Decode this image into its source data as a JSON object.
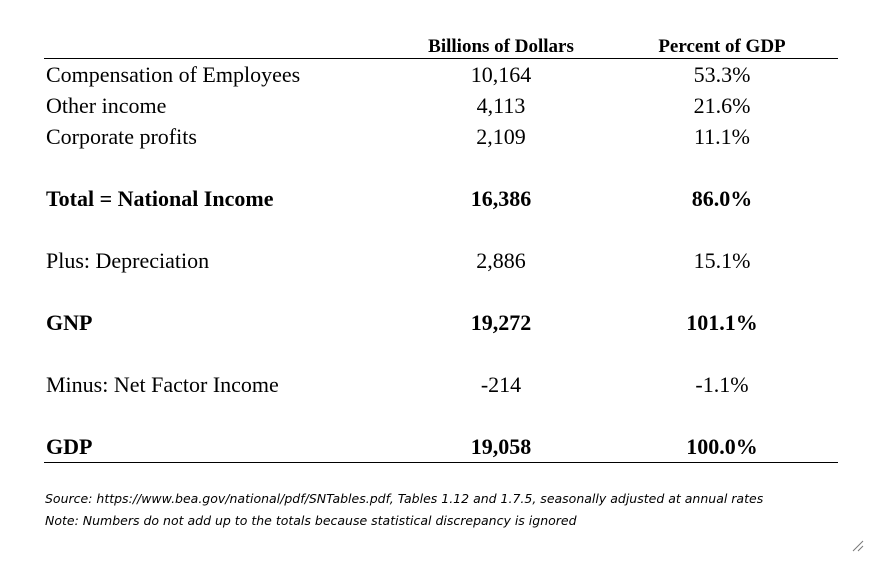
{
  "table": {
    "headers": [
      "",
      "Billions of Dollars",
      "Percent of GDP"
    ],
    "rows": [
      {
        "label": "Compensation of Employees",
        "billions": "10,164",
        "percent": "53.3%"
      },
      {
        "label": "Other income",
        "billions": "4,113",
        "percent": "21.6%"
      },
      {
        "label": "Corporate profits",
        "billions": "2,109",
        "percent": "11.1%"
      },
      {
        "label": "Total = National Income",
        "billions": "16,386",
        "percent": "86.0%"
      },
      {
        "label": "Plus: Depreciation",
        "billions": "2,886",
        "percent": "15.1%"
      },
      {
        "label": "GNP",
        "billions": "19,272",
        "percent": "101.1%"
      },
      {
        "label": "Minus: Net Factor Income",
        "billions": "-214",
        "percent": "-1.1%"
      },
      {
        "label": "GDP",
        "billions": "19,058",
        "percent": "100.0%"
      }
    ]
  },
  "notes": {
    "source": "Source: https://www.bea.gov/national/pdf/SNTables.pdf, Tables 1.12 and 1.7.5, seasonally adjusted at annual rates",
    "note": "Note: Numbers do not add up to the totals because statistical discrepancy is ignored"
  }
}
